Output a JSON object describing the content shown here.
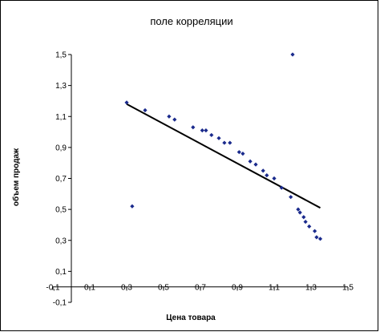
{
  "chart_data": {
    "type": "scatter",
    "title": "поле корреляции",
    "xlabel": "Цена товара",
    "ylabel": "объем продаж",
    "xlim": [
      -0.1,
      1.5
    ],
    "ylim": [
      -0.1,
      1.5
    ],
    "xticks": [
      "-0,1",
      "0,1",
      "0,3",
      "0,5",
      "0,7",
      "0,9",
      "1,1",
      "1,3",
      "1,5"
    ],
    "yticks": [
      "-0,1",
      "0,1",
      "0,3",
      "0,5",
      "0,7",
      "0,9",
      "1,1",
      "1,3",
      "1,5"
    ],
    "grid": false,
    "marker_color": "#1a2a8c",
    "points": [
      {
        "x": 0.3,
        "y": 1.19
      },
      {
        "x": 0.33,
        "y": 0.52
      },
      {
        "x": 0.4,
        "y": 1.14
      },
      {
        "x": 0.53,
        "y": 1.1
      },
      {
        "x": 0.56,
        "y": 1.08
      },
      {
        "x": 0.66,
        "y": 1.03
      },
      {
        "x": 0.71,
        "y": 1.01
      },
      {
        "x": 0.73,
        "y": 1.01
      },
      {
        "x": 0.76,
        "y": 0.98
      },
      {
        "x": 0.8,
        "y": 0.96
      },
      {
        "x": 0.83,
        "y": 0.93
      },
      {
        "x": 0.86,
        "y": 0.93
      },
      {
        "x": 0.91,
        "y": 0.87
      },
      {
        "x": 0.93,
        "y": 0.86
      },
      {
        "x": 0.97,
        "y": 0.81
      },
      {
        "x": 1.0,
        "y": 0.79
      },
      {
        "x": 1.04,
        "y": 0.75
      },
      {
        "x": 1.06,
        "y": 0.72
      },
      {
        "x": 1.1,
        "y": 0.7
      },
      {
        "x": 1.14,
        "y": 0.64
      },
      {
        "x": 1.19,
        "y": 0.58
      },
      {
        "x": 1.2,
        "y": 1.5
      },
      {
        "x": 1.23,
        "y": 0.5
      },
      {
        "x": 1.24,
        "y": 0.48
      },
      {
        "x": 1.26,
        "y": 0.45
      },
      {
        "x": 1.27,
        "y": 0.42
      },
      {
        "x": 1.29,
        "y": 0.39
      },
      {
        "x": 1.32,
        "y": 0.36
      },
      {
        "x": 1.33,
        "y": 0.32
      },
      {
        "x": 1.35,
        "y": 0.31
      }
    ],
    "trendline": {
      "x1": 0.3,
      "y1": 1.18,
      "x2": 1.35,
      "y2": 0.51,
      "color": "#000000"
    }
  }
}
